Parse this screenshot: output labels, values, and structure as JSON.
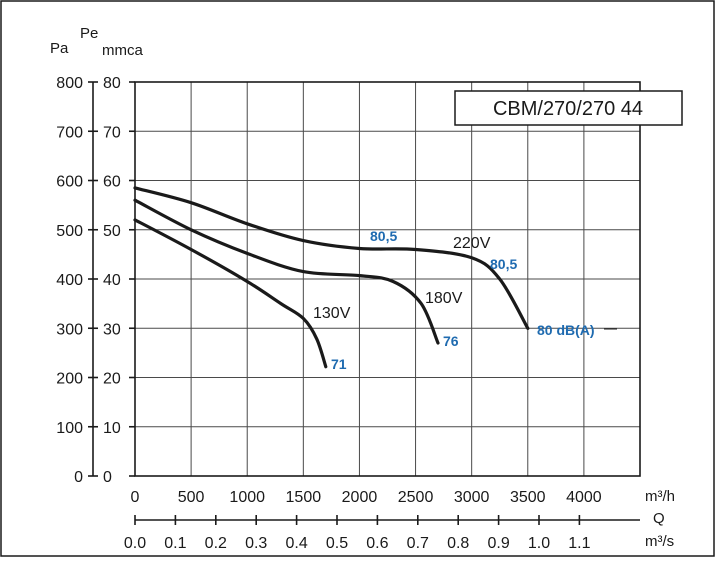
{
  "chart_data": {
    "type": "line",
    "title": "CBM/270/270 44",
    "y_label_primary": "Pa",
    "y_label_secondary_top": "Pe",
    "y_label_secondary": "mmca",
    "x_label_flow_h": "m³/h",
    "x_label_q": "Q",
    "x_label_flow_s": "m³/s",
    "grid": true,
    "ylim_pa": [
      0,
      800
    ],
    "xlim_m3h": [
      0,
      4500
    ],
    "y_ticks_pa": [
      "0",
      "100",
      "200",
      "300",
      "400",
      "500",
      "600",
      "700",
      "800"
    ],
    "y_ticks_mmca": [
      "0",
      "10",
      "20",
      "30",
      "40",
      "50",
      "60",
      "70",
      "80"
    ],
    "x_ticks_m3h": [
      "0",
      "500",
      "1000",
      "1500",
      "2000",
      "2500",
      "3000",
      "3500",
      "4000"
    ],
    "x_ticks_m3s": [
      "0.0",
      "0.1",
      "0.2",
      "0.3",
      "0.4",
      "0.5",
      "0.6",
      "0.7",
      "0.8",
      "0.9",
      "1.0",
      "1.1"
    ],
    "series": [
      {
        "name": "220V",
        "points": [
          [
            0,
            585
          ],
          [
            500,
            555
          ],
          [
            1000,
            512
          ],
          [
            1500,
            478
          ],
          [
            2000,
            462
          ],
          [
            2500,
            460
          ],
          [
            3000,
            443
          ],
          [
            3250,
            400
          ],
          [
            3500,
            300
          ]
        ]
      },
      {
        "name": "180V",
        "points": [
          [
            0,
            560
          ],
          [
            500,
            500
          ],
          [
            1000,
            452
          ],
          [
            1500,
            415
          ],
          [
            2000,
            407
          ],
          [
            2300,
            395
          ],
          [
            2550,
            350
          ],
          [
            2700,
            270
          ]
        ]
      },
      {
        "name": "130V",
        "points": [
          [
            0,
            520
          ],
          [
            500,
            460
          ],
          [
            1000,
            395
          ],
          [
            1300,
            350
          ],
          [
            1500,
            320
          ],
          [
            1620,
            278
          ],
          [
            1700,
            222
          ]
        ]
      }
    ],
    "annotations": [
      {
        "text": "80,5",
        "x": 2250,
        "y": 475
      },
      {
        "text": "80,5",
        "x": 3200,
        "y": 415
      },
      {
        "text": "80 dB(A)",
        "x": 3850,
        "y": 300
      },
      {
        "text": "76",
        "x": 2800,
        "y": 270
      },
      {
        "text": "71",
        "x": 1820,
        "y": 228
      }
    ]
  }
}
